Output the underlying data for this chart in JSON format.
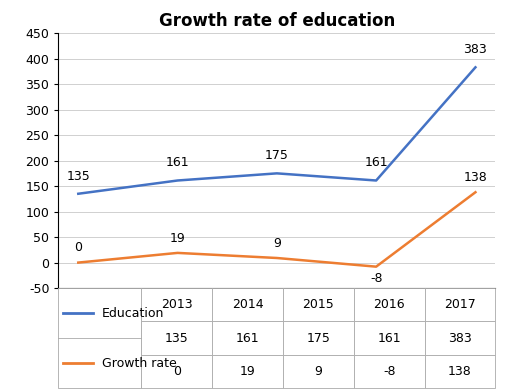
{
  "title": "Growth rate of education",
  "years": [
    2013,
    2014,
    2015,
    2016,
    2017
  ],
  "education": [
    135,
    161,
    175,
    161,
    383
  ],
  "growth_rate": [
    0,
    19,
    9,
    -8,
    138
  ],
  "education_color": "#4472C4",
  "growth_color": "#ED7D31",
  "ylim": [
    -50,
    450
  ],
  "yticks": [
    -50,
    0,
    50,
    100,
    150,
    200,
    250,
    300,
    350,
    400,
    450
  ],
  "title_fontsize": 12,
  "annot_fontsize": 9,
  "tick_fontsize": 9,
  "table_fontsize": 9,
  "edu_annot_offsets": [
    8,
    8,
    8,
    8,
    8
  ],
  "gr_annot_offsets": [
    6,
    6,
    6,
    -13,
    6
  ]
}
